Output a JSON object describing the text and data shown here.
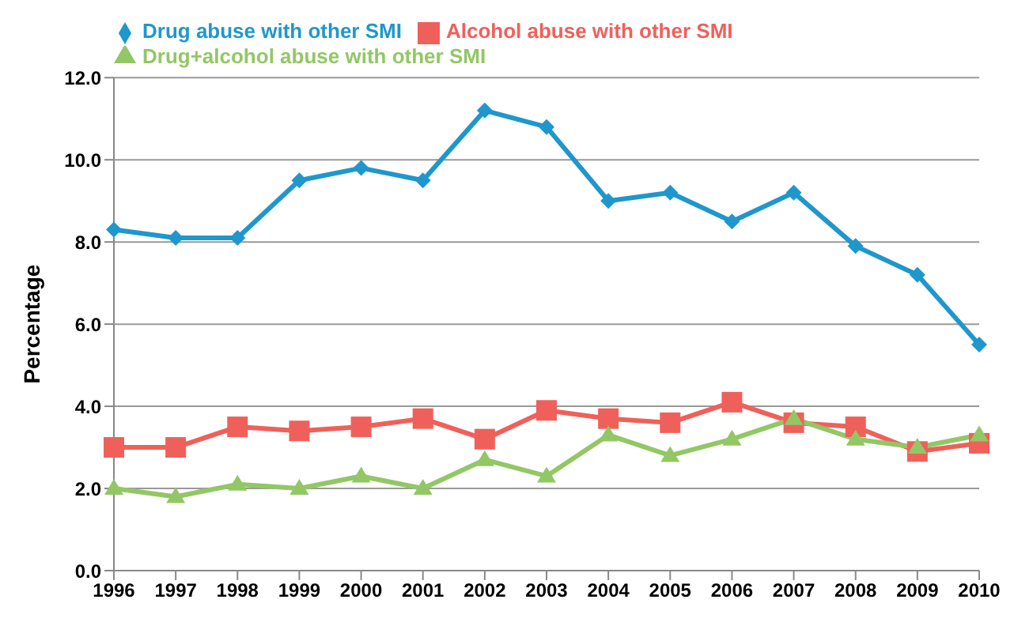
{
  "chart_data": {
    "type": "line",
    "ylabel": "Percentage",
    "categories": [
      "1996",
      "1997",
      "1998",
      "1999",
      "2000",
      "2001",
      "2002",
      "2003",
      "2004",
      "2005",
      "2006",
      "2007",
      "2008",
      "2009",
      "2010"
    ],
    "series": [
      {
        "name": "Drug abuse with other SMI",
        "color": "#1f97cc",
        "marker": "diamond",
        "values": [
          8.3,
          8.1,
          8.1,
          9.5,
          9.8,
          9.5,
          11.2,
          10.8,
          9.0,
          9.2,
          8.5,
          9.2,
          7.9,
          7.2,
          5.5
        ]
      },
      {
        "name": "Alcohol abuse with other SMI",
        "color": "#f0605a",
        "marker": "square",
        "values": [
          3.0,
          3.0,
          3.5,
          3.4,
          3.5,
          3.7,
          3.2,
          3.9,
          3.7,
          3.6,
          4.1,
          3.6,
          3.5,
          2.9,
          3.1
        ]
      },
      {
        "name": "Drug+alcohol abuse with other SMI",
        "color": "#92c765",
        "marker": "triangle",
        "values": [
          2.0,
          1.8,
          2.1,
          2.0,
          2.3,
          2.0,
          2.7,
          2.3,
          3.3,
          2.8,
          3.2,
          3.7,
          3.2,
          3.0,
          3.3
        ]
      }
    ],
    "ylim": [
      0,
      12
    ],
    "yticks": [
      {
        "value": 0,
        "label": "0.0"
      },
      {
        "value": 2,
        "label": "2.0"
      },
      {
        "value": 4,
        "label": "4.0"
      },
      {
        "value": 6,
        "label": "6.0"
      },
      {
        "value": 8,
        "label": "8.0"
      },
      {
        "value": 10,
        "label": "10.0"
      },
      {
        "value": 12,
        "label": "12.0"
      }
    ],
    "grid": "y",
    "legend": "top"
  }
}
